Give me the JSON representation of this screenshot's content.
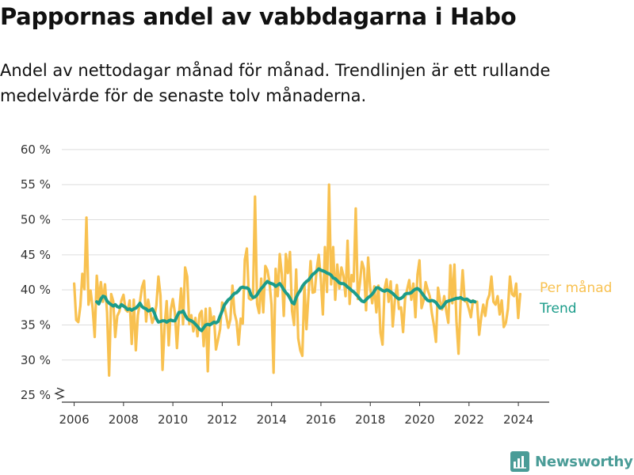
{
  "title": "Pappornas andel av vabbdagarna i Habo",
  "subtitle": "Andel av nettodagar månad för månad. Trendlinjen är ett rullande medelvärde för de senaste tolv månaderna.",
  "brand": {
    "name": "Newsworthy",
    "color": "#4a9c97",
    "icon": "bar-chart-logo-icon"
  },
  "colors": {
    "monthly": "#f8c150",
    "trend": "#1b9c8a",
    "grid": "#dddddd",
    "axis": "#333333"
  },
  "chart_data": {
    "type": "line",
    "ylabel": "",
    "xlabel": "",
    "ylim": [
      24,
      61
    ],
    "y_ticks": [
      25,
      30,
      35,
      40,
      45,
      50,
      55,
      60
    ],
    "y_tick_labels": [
      "25 %",
      "30 %",
      "35 %",
      "40 %",
      "45 %",
      "50 %",
      "55 %",
      "60 %"
    ],
    "y_axis_break": true,
    "xlim": [
      2005.5,
      2025.25
    ],
    "x_ticks": [
      2006,
      2008,
      2010,
      2012,
      2014,
      2016,
      2018,
      2020,
      2022,
      2024
    ],
    "x_tick_labels": [
      "2006",
      "2008",
      "2010",
      "2012",
      "2014",
      "2016",
      "2018",
      "2020",
      "2022",
      "2024"
    ],
    "grid": true,
    "legend": "inline labels at right end of lines",
    "series": [
      {
        "name": "Per månad",
        "x_start": 2006.0,
        "step": 0.0833,
        "values": [
          40.9,
          35.7,
          35.4,
          37.7,
          42.3,
          40.1,
          50.3,
          37.9,
          39.9,
          37.4,
          33.3,
          42.0,
          38.4,
          41.1,
          38.3,
          40.8,
          36.8,
          27.8,
          39.4,
          38.4,
          33.3,
          36.3,
          36.9,
          38.5,
          39.3,
          37.2,
          36.9,
          38.5,
          32.3,
          38.6,
          31.4,
          36.4,
          38.3,
          40.4,
          41.3,
          35.5,
          38.6,
          36.9,
          35.3,
          36.1,
          37.8,
          41.9,
          39.2,
          28.6,
          34.8,
          38.4,
          32.1,
          37.2,
          38.7,
          36.7,
          31.7,
          36.5,
          40.2,
          35.1,
          43.2,
          41.9,
          35.1,
          36.4,
          34.1,
          36.0,
          33.4,
          36.5,
          37.0,
          32.0,
          37.3,
          28.4,
          37.4,
          35.3,
          36.2,
          31.5,
          32.9,
          34.4,
          38.2,
          37.8,
          36.3,
          34.6,
          35.8,
          40.6,
          36.7,
          35.5,
          32.2,
          35.9,
          35.2,
          44.3,
          45.9,
          38.8,
          38.6,
          38.8,
          53.3,
          38.0,
          36.7,
          41.6,
          36.8,
          43.4,
          42.8,
          41.1,
          37.9,
          28.2,
          43.0,
          39.1,
          45.1,
          42.2,
          36.3,
          45.1,
          42.4,
          45.4,
          37.0,
          35.0,
          42.9,
          33.1,
          31.4,
          30.6,
          40.7,
          34.4,
          39.4,
          44.1,
          39.6,
          39.7,
          42.9,
          45.0,
          41.6,
          36.5,
          46.1,
          39.7,
          55.0,
          40.8,
          46.1,
          38.6,
          43.6,
          40.2,
          43.2,
          42.0,
          39.1,
          47.0,
          38.0,
          42.1,
          41.2,
          51.6,
          38.7,
          40.9,
          44.0,
          43.0,
          37.1,
          44.6,
          40.3,
          38.1,
          40.5,
          36.8,
          40.6,
          33.9,
          32.2,
          40.1,
          41.5,
          38.3,
          41.2,
          34.8,
          38.5,
          40.7,
          37.3,
          37.5,
          34.0,
          38.8,
          40.1,
          41.4,
          38.6,
          40.9,
          36.1,
          42.2,
          44.2,
          37.4,
          38.5,
          41.1,
          40.0,
          39.1,
          36.7,
          35.0,
          32.6,
          40.3,
          38.4,
          37.2,
          39.1,
          37.0,
          35.3,
          43.5,
          38.1,
          43.6,
          35.5,
          30.9,
          38.2,
          42.8,
          38.4,
          38.3,
          37.3,
          36.1,
          38.5,
          38.2,
          38.3,
          33.6,
          36.1,
          37.9,
          36.3,
          38.5,
          39.3,
          41.9,
          38.3,
          37.9,
          39.1,
          36.5,
          38.5,
          34.7,
          35.3,
          37.3,
          41.9,
          39.4,
          39.1,
          40.9,
          36.0,
          39.4
        ]
      },
      {
        "name": "Trend",
        "x_start": 2006.917,
        "step": 0.0833,
        "values": [
          38.3,
          38.0,
          38.7,
          39.1,
          39.0,
          38.4,
          38.1,
          37.9,
          37.7,
          37.9,
          37.6,
          37.5,
          37.9,
          37.7,
          37.5,
          37.2,
          37.3,
          37.1,
          37.3,
          37.4,
          37.7,
          38.1,
          37.6,
          37.4,
          37.3,
          37.0,
          37.1,
          37.3,
          36.7,
          35.9,
          35.4,
          35.5,
          35.6,
          35.6,
          35.4,
          35.6,
          35.7,
          35.6,
          35.6,
          36.2,
          36.8,
          36.8,
          37.0,
          36.4,
          35.9,
          35.7,
          35.6,
          35.4,
          35.1,
          34.8,
          34.4,
          34.2,
          34.6,
          35.0,
          35.1,
          35.0,
          35.2,
          35.4,
          35.3,
          35.5,
          36.3,
          37.0,
          37.8,
          38.2,
          38.6,
          38.8,
          39.2,
          39.5,
          39.6,
          39.9,
          40.3,
          40.4,
          40.3,
          40.3,
          40.1,
          39.3,
          38.9,
          39.0,
          39.3,
          39.8,
          40.2,
          40.5,
          40.9,
          41.2,
          41.0,
          40.9,
          40.8,
          40.5,
          40.7,
          40.9,
          40.5,
          40.0,
          39.6,
          39.3,
          38.8,
          38.2,
          38.0,
          38.9,
          39.5,
          39.9,
          40.5,
          40.9,
          41.2,
          41.4,
          41.8,
          42.2,
          42.4,
          42.7,
          43.0,
          42.8,
          42.7,
          42.6,
          42.4,
          42.3,
          42.1,
          41.7,
          41.6,
          41.3,
          41.0,
          40.9,
          40.9,
          40.7,
          40.4,
          40.2,
          39.9,
          39.7,
          39.4,
          39.1,
          38.7,
          38.4,
          38.3,
          38.6,
          38.9,
          39.1,
          39.4,
          39.8,
          40.3,
          40.3,
          40.1,
          39.9,
          39.8,
          40.0,
          39.9,
          39.7,
          39.5,
          39.2,
          38.9,
          38.7,
          38.8,
          39.0,
          39.4,
          39.5,
          39.5,
          39.6,
          39.9,
          40.1,
          40.2,
          40.0,
          39.6,
          39.2,
          38.8,
          38.5,
          38.4,
          38.5,
          38.4,
          38.2,
          37.8,
          37.4,
          37.5,
          37.9,
          38.3,
          38.4,
          38.5,
          38.6,
          38.7,
          38.8,
          38.8,
          38.9,
          38.7,
          38.6,
          38.7,
          38.5,
          38.3,
          38.4,
          38.3
        ]
      }
    ]
  }
}
